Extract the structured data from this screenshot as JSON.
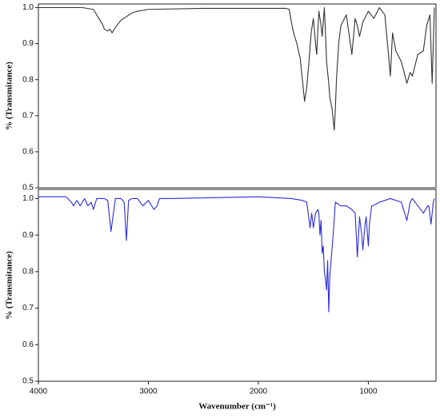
{
  "chart_data": [
    {
      "type": "line",
      "y_label": "% (Transmitance)",
      "x": [
        4000,
        3800,
        3600,
        3500,
        3450,
        3420,
        3400,
        3370,
        3350,
        3330,
        3300,
        3250,
        3200,
        3150,
        3100,
        3000,
        2500,
        2000,
        1750,
        1720,
        1700,
        1680,
        1650,
        1620,
        1600,
        1580,
        1560,
        1540,
        1520,
        1500,
        1480,
        1470,
        1460,
        1450,
        1430,
        1420,
        1410,
        1400,
        1390,
        1380,
        1360,
        1350,
        1330,
        1310,
        1300,
        1290,
        1270,
        1250,
        1200,
        1150,
        1120,
        1100,
        1080,
        1050,
        1000,
        950,
        900,
        850,
        820,
        800,
        780,
        750,
        700,
        650,
        620,
        600,
        550,
        500,
        470,
        440,
        420,
        400
      ],
      "series": [
        {
          "color": "#333333",
          "values": [
            1.0,
            1.0,
            1.0,
            0.995,
            0.97,
            0.955,
            0.94,
            0.935,
            0.94,
            0.93,
            0.945,
            0.965,
            0.975,
            0.985,
            0.99,
            0.995,
            0.998,
            0.998,
            0.998,
            0.995,
            0.96,
            0.93,
            0.9,
            0.86,
            0.8,
            0.74,
            0.78,
            0.85,
            0.93,
            0.97,
            0.9,
            0.87,
            0.93,
            0.99,
            0.95,
            0.92,
            0.96,
            1.0,
            0.93,
            0.85,
            0.79,
            0.75,
            0.72,
            0.66,
            0.72,
            0.8,
            0.9,
            0.95,
            0.98,
            0.87,
            0.97,
            0.95,
            0.92,
            0.96,
            0.99,
            0.97,
            1.0,
            0.98,
            0.88,
            0.81,
            0.93,
            0.88,
            0.85,
            0.79,
            0.82,
            0.81,
            0.87,
            0.88,
            0.95,
            0.98,
            0.79,
            1.0
          ]
        }
      ],
      "xlim": [
        4000,
        385
      ],
      "ylim": [
        0.5,
        1.01
      ],
      "yticks": [
        0.5,
        0.6,
        0.7,
        0.8,
        0.9,
        {
          "value": 1,
          "label": "1.0"
        }
      ]
    },
    {
      "type": "line",
      "y_label": "% (Transmitance)",
      "x_label": "Wavenumber (cm⁻¹)",
      "x": [
        4000,
        3750,
        3700,
        3680,
        3650,
        3620,
        3580,
        3550,
        3520,
        3500,
        3470,
        3450,
        3400,
        3370,
        3340,
        3300,
        3250,
        3220,
        3200,
        3180,
        3150,
        3100,
        3050,
        3000,
        2950,
        2920,
        2900,
        2800,
        2000,
        1700,
        1600,
        1560,
        1530,
        1515,
        1500,
        1480,
        1460,
        1450,
        1440,
        1430,
        1420,
        1410,
        1400,
        1390,
        1380,
        1370,
        1360,
        1350,
        1320,
        1300,
        1250,
        1200,
        1150,
        1120,
        1100,
        1080,
        1060,
        1050,
        1030,
        1020,
        1000,
        990,
        970,
        960,
        900,
        800,
        700,
        650,
        620,
        600,
        550,
        500,
        460,
        450,
        430,
        410,
        400
      ],
      "series": [
        {
          "color": "#2b2bd9",
          "values": [
            1.005,
            1.005,
            0.99,
            0.98,
            0.995,
            0.98,
            1.0,
            0.98,
            0.99,
            0.97,
            1.0,
            1.0,
            1.0,
            0.995,
            0.91,
            1.0,
            1.0,
            0.99,
            0.885,
            0.995,
            1.0,
            1.0,
            0.98,
            0.995,
            0.97,
            0.98,
            1.0,
            1.0,
            1.005,
            1.0,
            0.995,
            0.99,
            0.92,
            0.96,
            0.92,
            0.96,
            0.97,
            0.96,
            0.9,
            0.94,
            0.85,
            0.87,
            0.8,
            0.78,
            0.75,
            0.83,
            0.69,
            0.79,
            0.9,
            0.99,
            0.98,
            0.98,
            0.97,
            0.96,
            0.84,
            0.95,
            0.9,
            0.86,
            0.93,
            0.95,
            0.87,
            0.93,
            0.98,
            0.98,
            0.99,
            1.0,
            0.99,
            0.94,
            0.99,
            1.0,
            0.98,
            0.96,
            0.98,
            0.98,
            0.93,
            0.99,
            1.0
          ]
        }
      ],
      "xlim": [
        4000,
        385
      ],
      "ylim": [
        0.5,
        1.025
      ],
      "xticks": [
        4000,
        3000,
        2000,
        1000
      ],
      "yticks": [
        0.5,
        0.6,
        0.7,
        0.8,
        0.9,
        {
          "value": 1,
          "label": "1.0"
        }
      ]
    }
  ]
}
